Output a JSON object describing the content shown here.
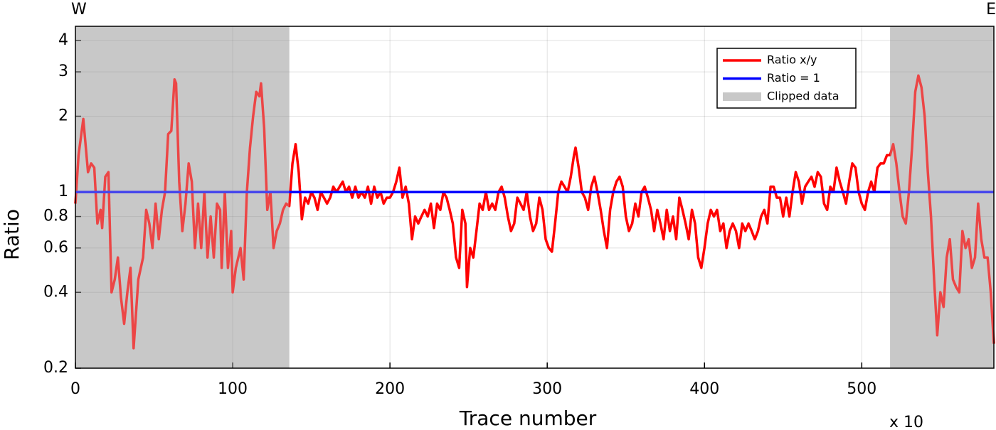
{
  "chart_data": {
    "type": "line",
    "annotations": [
      "W",
      "E",
      "x 10"
    ],
    "xlabel": "Trace number",
    "ylabel": "Ratio",
    "xlim": [
      0,
      584
    ],
    "xticks": [
      0,
      100,
      200,
      300,
      400,
      500
    ],
    "ylim": [
      0.2,
      4.55
    ],
    "yticks": [
      0.2,
      0.4,
      0.6,
      0.8,
      1,
      2,
      3,
      4
    ],
    "yscale": "log",
    "grid": true,
    "legend": "upper right",
    "shaded_regions": {
      "name": "Clipped data",
      "color": "#c8c8c8",
      "ranges": [
        [
          0,
          136
        ],
        [
          518,
          584
        ]
      ]
    },
    "series": [
      {
        "name": "Ratio x/y",
        "color": "#ff0000",
        "x": [
          0,
          2,
          5,
          8,
          10,
          12,
          14,
          16,
          17,
          19,
          21,
          23,
          25,
          27,
          29,
          31,
          33,
          35,
          37,
          40,
          43,
          45,
          47,
          49,
          51,
          53,
          55,
          57,
          59,
          61,
          63,
          64,
          66,
          68,
          70,
          72,
          74,
          76,
          78,
          80,
          82,
          84,
          86,
          88,
          90,
          92,
          93,
          95,
          97,
          99,
          100,
          102,
          105,
          107,
          109,
          111,
          113,
          115,
          117,
          118,
          120,
          122,
          124,
          126,
          128,
          130,
          132,
          134,
          136,
          138,
          140,
          142,
          144,
          146,
          148,
          150,
          152,
          154,
          156,
          158,
          160,
          162,
          164,
          166,
          168,
          170,
          172,
          174,
          176,
          178,
          180,
          182,
          184,
          186,
          188,
          190,
          192,
          194,
          196,
          198,
          200,
          202,
          204,
          206,
          208,
          210,
          212,
          214,
          216,
          218,
          220,
          222,
          224,
          226,
          228,
          230,
          232,
          234,
          236,
          238,
          240,
          242,
          244,
          246,
          248,
          249,
          251,
          253,
          255,
          257,
          259,
          261,
          263,
          265,
          267,
          269,
          271,
          273,
          275,
          277,
          279,
          281,
          283,
          285,
          287,
          289,
          291,
          293,
          295,
          297,
          299,
          301,
          303,
          305,
          307,
          309,
          311,
          313,
          315,
          317,
          318,
          320,
          322,
          324,
          326,
          328,
          330,
          332,
          334,
          336,
          338,
          340,
          342,
          344,
          346,
          348,
          350,
          352,
          354,
          356,
          358,
          360,
          362,
          364,
          366,
          368,
          370,
          372,
          374,
          376,
          378,
          380,
          382,
          384,
          386,
          388,
          390,
          392,
          394,
          396,
          398,
          400,
          402,
          404,
          406,
          408,
          410,
          412,
          414,
          416,
          418,
          420,
          422,
          424,
          426,
          428,
          430,
          432,
          434,
          436,
          438,
          440,
          442,
          444,
          446,
          448,
          450,
          452,
          454,
          456,
          458,
          460,
          462,
          464,
          466,
          468,
          470,
          472,
          474,
          476,
          478,
          480,
          482,
          484,
          486,
          488,
          490,
          492,
          494,
          496,
          498,
          500,
          502,
          504,
          506,
          508,
          510,
          512,
          514,
          516,
          518,
          520,
          522,
          524,
          526,
          528,
          530,
          532,
          534,
          536,
          538,
          540,
          542,
          544,
          546,
          548,
          550,
          552,
          554,
          556,
          558,
          560,
          562,
          564,
          566,
          568,
          570,
          572,
          574,
          576,
          578,
          580,
          582,
          584
        ],
        "values": [
          0.9,
          1.4,
          1.95,
          1.2,
          1.3,
          1.25,
          0.75,
          0.85,
          0.72,
          1.15,
          1.2,
          0.4,
          0.45,
          0.55,
          0.38,
          0.3,
          0.4,
          0.5,
          0.24,
          0.45,
          0.55,
          0.85,
          0.75,
          0.6,
          0.9,
          0.65,
          0.85,
          1.0,
          1.7,
          1.75,
          2.8,
          2.7,
          1.1,
          0.7,
          0.9,
          1.3,
          1.1,
          0.6,
          0.9,
          0.6,
          1.0,
          0.55,
          0.8,
          0.55,
          0.9,
          0.85,
          0.5,
          1.0,
          0.5,
          0.7,
          0.4,
          0.5,
          0.6,
          0.45,
          1.0,
          1.5,
          2.0,
          2.5,
          2.4,
          2.7,
          1.8,
          0.85,
          1.0,
          0.6,
          0.7,
          0.75,
          0.85,
          0.9,
          0.88,
          1.3,
          1.55,
          1.2,
          0.78,
          0.95,
          0.9,
          1.0,
          0.95,
          0.85,
          1.0,
          0.95,
          0.9,
          0.95,
          1.05,
          1.0,
          1.05,
          1.1,
          1.0,
          1.05,
          0.95,
          1.05,
          0.95,
          1.0,
          0.95,
          1.05,
          0.9,
          1.05,
          0.95,
          1.0,
          0.9,
          0.95,
          0.95,
          1.0,
          1.1,
          1.25,
          0.95,
          1.05,
          0.9,
          0.65,
          0.8,
          0.75,
          0.8,
          0.85,
          0.8,
          0.9,
          0.72,
          0.9,
          0.85,
          1.0,
          0.95,
          0.85,
          0.75,
          0.55,
          0.5,
          0.85,
          0.75,
          0.42,
          0.6,
          0.55,
          0.7,
          0.9,
          0.85,
          1.0,
          0.85,
          0.9,
          0.85,
          1.0,
          1.05,
          0.95,
          0.8,
          0.7,
          0.75,
          0.95,
          0.9,
          0.85,
          1.0,
          0.8,
          0.7,
          0.75,
          0.95,
          0.85,
          0.65,
          0.6,
          0.58,
          0.75,
          1.0,
          1.1,
          1.05,
          1.0,
          1.15,
          1.4,
          1.5,
          1.25,
          1.0,
          0.95,
          0.85,
          1.05,
          1.15,
          1.0,
          0.85,
          0.7,
          0.6,
          0.85,
          1.0,
          1.1,
          1.15,
          1.05,
          0.8,
          0.7,
          0.75,
          0.9,
          0.8,
          1.0,
          1.05,
          0.95,
          0.85,
          0.7,
          0.85,
          0.75,
          0.65,
          0.85,
          0.7,
          0.8,
          0.65,
          0.95,
          0.85,
          0.75,
          0.65,
          0.85,
          0.75,
          0.55,
          0.5,
          0.6,
          0.75,
          0.85,
          0.8,
          0.85,
          0.7,
          0.75,
          0.6,
          0.7,
          0.75,
          0.7,
          0.6,
          0.75,
          0.7,
          0.75,
          0.7,
          0.65,
          0.7,
          0.8,
          0.85,
          0.75,
          1.05,
          1.05,
          0.95,
          0.95,
          0.8,
          0.95,
          0.8,
          1.0,
          1.2,
          1.1,
          0.9,
          1.05,
          1.1,
          1.15,
          1.05,
          1.2,
          1.15,
          0.9,
          0.85,
          1.05,
          1.0,
          1.25,
          1.1,
          1.0,
          0.9,
          1.1,
          1.3,
          1.25,
          1.0,
          0.9,
          0.85,
          1.0,
          1.1,
          1.0,
          1.25,
          1.3,
          1.3,
          1.4,
          1.4,
          1.55,
          1.3,
          1.0,
          0.8,
          0.75,
          1.0,
          1.5,
          2.5,
          2.9,
          2.6,
          2.0,
          1.2,
          0.8,
          0.45,
          0.27,
          0.4,
          0.35,
          0.55,
          0.65,
          0.45,
          0.42,
          0.4,
          0.7,
          0.6,
          0.65,
          0.5,
          0.55,
          0.9,
          0.65,
          0.55,
          0.55,
          0.4,
          0.25
        ]
      },
      {
        "name": "Ratio = 1",
        "color": "#0000ff",
        "x": [
          0,
          584
        ],
        "values": [
          1,
          1
        ]
      }
    ]
  }
}
